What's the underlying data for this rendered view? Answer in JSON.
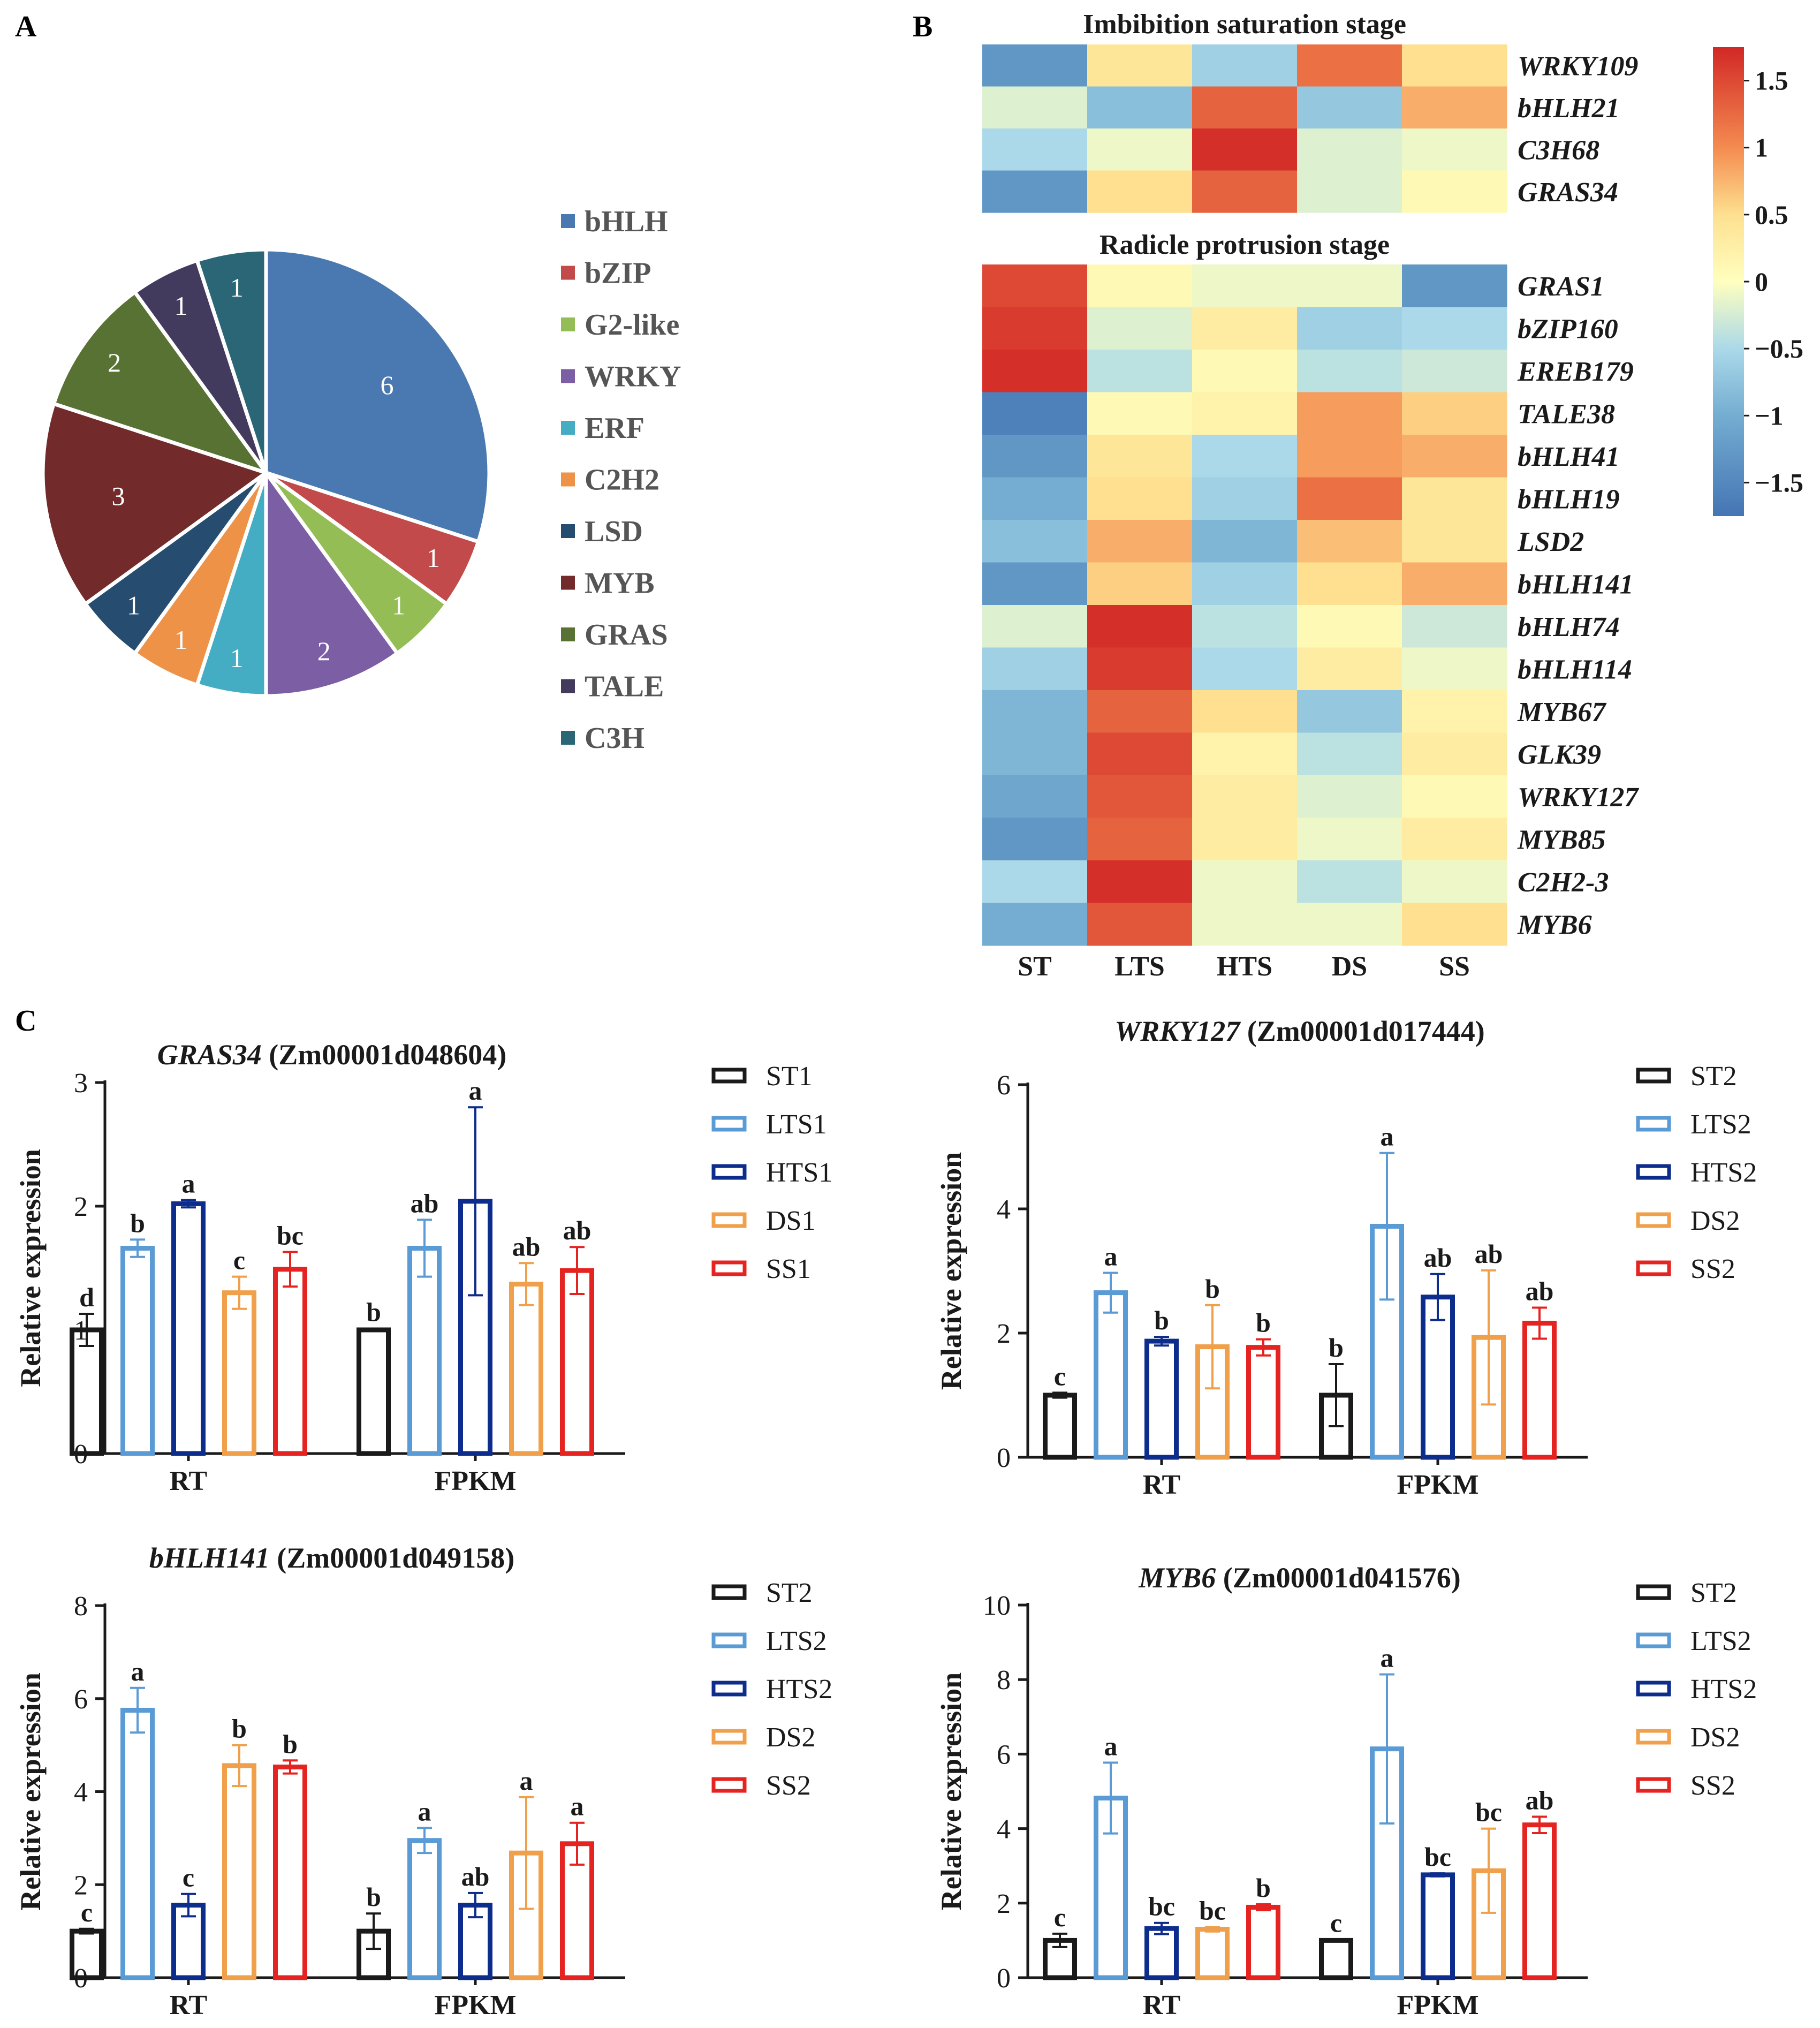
{
  "panel_labels": [
    "A",
    "B",
    "C"
  ],
  "chart_data": [
    {
      "type": "pie",
      "panel": "A",
      "start": "12 o'clock, clockwise",
      "slices": [
        {
          "label": "bHLH",
          "value": 6,
          "color": "#4a78b0"
        },
        {
          "label": "bZIP",
          "value": 1,
          "color": "#c24a4a"
        },
        {
          "label": "G2-like",
          "value": 1,
          "color": "#94bd55"
        },
        {
          "label": "WRKY",
          "value": 2,
          "color": "#7b5ea3"
        },
        {
          "label": "ERF",
          "value": 1,
          "color": "#44adc3"
        },
        {
          "label": "C2H2",
          "value": 1,
          "color": "#ee9247"
        },
        {
          "label": "LSD",
          "value": 1,
          "color": "#264c70"
        },
        {
          "label": "MYB",
          "value": 3,
          "color": "#722a2a"
        },
        {
          "label": "GRAS",
          "value": 2,
          "color": "#587234"
        },
        {
          "label": "TALE",
          "value": 1,
          "color": "#433b5e"
        },
        {
          "label": "C3H",
          "value": 1,
          "color": "#2a6676"
        }
      ],
      "legend_position": "right"
    },
    {
      "type": "heatmap",
      "panel": "B",
      "columns": [
        "ST",
        "LTS",
        "HTS",
        "DS",
        "SS"
      ],
      "groups": [
        {
          "title": "Imbibition saturation stage",
          "rows": [
            {
              "gene": "WRKY109",
              "values": [
                -1.3,
                0.4,
                -0.6,
                1.2,
                0.5
              ]
            },
            {
              "gene": "bHLH21",
              "values": [
                -0.2,
                -0.8,
                1.3,
                -0.7,
                0.8
              ]
            },
            {
              "gene": "C3H68",
              "values": [
                -0.5,
                -0.1,
                1.7,
                -0.2,
                -0.1
              ]
            },
            {
              "gene": "GRAS34",
              "values": [
                -1.3,
                0.5,
                1.3,
                -0.2,
                0.1
              ]
            }
          ]
        },
        {
          "title": "Radicle protrusion stage",
          "rows": [
            {
              "gene": "GRAS1",
              "values": [
                1.5,
                0.1,
                -0.1,
                -0.1,
                -1.3
              ]
            },
            {
              "gene": "bZIP160",
              "values": [
                1.6,
                -0.2,
                0.3,
                -0.6,
                -0.5
              ]
            },
            {
              "gene": "EREB179",
              "values": [
                1.7,
                -0.4,
                0.1,
                -0.4,
                -0.3
              ]
            },
            {
              "gene": "TALE38",
              "values": [
                -1.6,
                0.1,
                0.2,
                0.9,
                0.6
              ]
            },
            {
              "gene": "bHLH41",
              "values": [
                -1.3,
                0.4,
                -0.5,
                0.9,
                0.8
              ]
            },
            {
              "gene": "bHLH19",
              "values": [
                -1.0,
                0.5,
                -0.6,
                1.2,
                0.4
              ]
            },
            {
              "gene": "LSD2",
              "values": [
                -0.8,
                0.8,
                -0.9,
                0.7,
                0.4
              ]
            },
            {
              "gene": "bHLH141",
              "values": [
                -1.3,
                0.6,
                -0.6,
                0.5,
                0.8
              ]
            },
            {
              "gene": "bHLH74",
              "values": [
                -0.2,
                1.7,
                -0.4,
                0.1,
                -0.3
              ]
            },
            {
              "gene": "bHLH114",
              "values": [
                -0.6,
                1.6,
                -0.5,
                0.3,
                -0.1
              ]
            },
            {
              "gene": "MYB67",
              "values": [
                -0.9,
                1.3,
                0.5,
                -0.7,
                0.2
              ]
            },
            {
              "gene": "GLK39",
              "values": [
                -0.9,
                1.5,
                0.2,
                -0.4,
                0.3
              ]
            },
            {
              "gene": "WRKY127",
              "values": [
                -1.1,
                1.4,
                0.3,
                -0.2,
                0.1
              ]
            },
            {
              "gene": "MYB85",
              "values": [
                -1.3,
                1.3,
                0.3,
                -0.1,
                0.3
              ]
            },
            {
              "gene": "C2H2-3",
              "values": [
                -0.5,
                1.7,
                -0.1,
                -0.4,
                -0.1
              ]
            },
            {
              "gene": "MYB6",
              "values": [
                -1.0,
                1.4,
                -0.1,
                -0.1,
                0.5
              ]
            }
          ]
        }
      ],
      "colorbar": {
        "min": -1.75,
        "max": 1.75,
        "ticks": [
          1.5,
          1,
          0.5,
          0,
          -0.5,
          -1,
          -1.5
        ],
        "tick_labels": [
          "1.5",
          "1",
          "0.5",
          "0",
          "−0.5",
          "−1",
          "−1.5"
        ]
      }
    },
    {
      "type": "bar",
      "panel": "C",
      "title_gene": "GRAS34",
      "title_id": "(Zm00001d048604)",
      "ylabel": "Relative expression",
      "ylim": [
        0,
        3
      ],
      "yticks": [
        0,
        1,
        2,
        3
      ],
      "categories": [
        "RT",
        "FPKM"
      ],
      "series": [
        {
          "name": "ST1",
          "values": [
            1.0,
            1.0
          ],
          "errors": [
            0.13,
            0.01
          ],
          "letters": [
            "d",
            "b"
          ]
        },
        {
          "name": "LTS1",
          "values": [
            1.66,
            1.66
          ],
          "errors": [
            0.07,
            0.23
          ],
          "letters": [
            "b",
            "ab"
          ]
        },
        {
          "name": "HTS1",
          "values": [
            2.02,
            2.04
          ],
          "errors": [
            0.03,
            0.76
          ],
          "letters": [
            "a",
            "a"
          ]
        },
        {
          "name": "DS1",
          "values": [
            1.3,
            1.37
          ],
          "errors": [
            0.13,
            0.17
          ],
          "letters": [
            "c",
            "ab"
          ]
        },
        {
          "name": "SS1",
          "values": [
            1.49,
            1.48
          ],
          "errors": [
            0.14,
            0.19
          ],
          "letters": [
            "bc",
            "ab"
          ]
        }
      ]
    },
    {
      "type": "bar",
      "panel": "C",
      "title_gene": "WRKY127",
      "title_id": "(Zm00001d017444)",
      "ylabel": "Relative expression",
      "ylim": [
        0,
        6
      ],
      "yticks": [
        0,
        2,
        4,
        6
      ],
      "categories": [
        "RT",
        "FPKM"
      ],
      "series": [
        {
          "name": "ST2",
          "values": [
            1.0,
            1.0
          ],
          "errors": [
            0.04,
            0.5
          ],
          "letters": [
            "c",
            "b"
          ]
        },
        {
          "name": "LTS2",
          "values": [
            2.65,
            3.72
          ],
          "errors": [
            0.32,
            1.18
          ],
          "letters": [
            "a",
            "a"
          ]
        },
        {
          "name": "HTS2",
          "values": [
            1.87,
            2.58
          ],
          "errors": [
            0.07,
            0.37
          ],
          "letters": [
            "b",
            "ab"
          ]
        },
        {
          "name": "DS2",
          "values": [
            1.78,
            1.93
          ],
          "errors": [
            0.67,
            1.08
          ],
          "letters": [
            "b",
            "ab"
          ]
        },
        {
          "name": "SS2",
          "values": [
            1.77,
            2.16
          ],
          "errors": [
            0.13,
            0.25
          ],
          "letters": [
            "b",
            "ab"
          ]
        }
      ]
    },
    {
      "type": "bar",
      "panel": "C",
      "title_gene": "bHLH141",
      "title_id": "(Zm00001d049158)",
      "ylabel": "Relative expression",
      "ylim": [
        0,
        8
      ],
      "yticks": [
        0,
        2,
        4,
        6,
        8
      ],
      "categories": [
        "RT",
        "FPKM"
      ],
      "series": [
        {
          "name": "ST2",
          "values": [
            1.0,
            1.0
          ],
          "errors": [
            0.05,
            0.38
          ],
          "letters": [
            "c",
            "b"
          ]
        },
        {
          "name": "LTS2",
          "values": [
            5.75,
            2.95
          ],
          "errors": [
            0.48,
            0.27
          ],
          "letters": [
            "a",
            "a"
          ]
        },
        {
          "name": "HTS2",
          "values": [
            1.56,
            1.56
          ],
          "errors": [
            0.24,
            0.26
          ],
          "letters": [
            "c",
            "ab"
          ]
        },
        {
          "name": "DS2",
          "values": [
            4.56,
            2.68
          ],
          "errors": [
            0.44,
            1.2
          ],
          "letters": [
            "b",
            "a"
          ]
        },
        {
          "name": "SS2",
          "values": [
            4.53,
            2.88
          ],
          "errors": [
            0.14,
            0.45
          ],
          "letters": [
            "b",
            "a"
          ]
        }
      ]
    },
    {
      "type": "bar",
      "panel": "C",
      "title_gene": "MYB6",
      "title_id": "(Zm00001d041576)",
      "ylabel": "Relative expression",
      "ylim": [
        0,
        10
      ],
      "yticks": [
        0,
        2,
        4,
        6,
        8,
        10
      ],
      "categories": [
        "RT",
        "FPKM"
      ],
      "series": [
        {
          "name": "ST2",
          "values": [
            1.0,
            1.0
          ],
          "errors": [
            0.18,
            0.03
          ],
          "letters": [
            "c",
            "c"
          ]
        },
        {
          "name": "LTS2",
          "values": [
            4.82,
            6.14
          ],
          "errors": [
            0.95,
            2.0
          ],
          "letters": [
            "a",
            "a"
          ]
        },
        {
          "name": "HTS2",
          "values": [
            1.32,
            2.76
          ],
          "errors": [
            0.15,
            0.04
          ],
          "letters": [
            "bc",
            "bc"
          ]
        },
        {
          "name": "DS2",
          "values": [
            1.3,
            2.87
          ],
          "errors": [
            0.06,
            1.13
          ],
          "letters": [
            "bc",
            "bc"
          ]
        },
        {
          "name": "SS2",
          "values": [
            1.89,
            4.1
          ],
          "errors": [
            0.08,
            0.22
          ],
          "letters": [
            "b",
            "ab"
          ]
        }
      ]
    }
  ],
  "bar_colors": [
    "#1a1a1a",
    "#5b9bd5",
    "#0d2d8c",
    "#f0a04b",
    "#e52421"
  ]
}
